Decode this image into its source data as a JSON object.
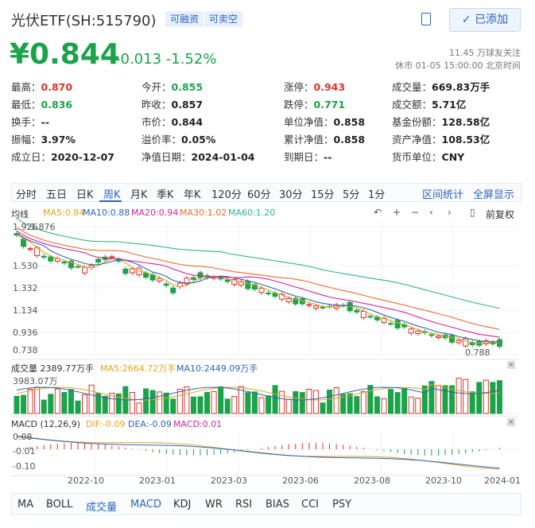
{
  "header": {
    "title": "光伏ETF(SH:515790)",
    "badges": [
      "可融资",
      "可卖空"
    ],
    "add_button": "已添加",
    "price": "¥0.844",
    "change": "-0.013 -1.52%",
    "followers": "11.45 万球友关注",
    "market_status": "休市 01-05 15:00:00 北京时间"
  },
  "stats": [
    [
      "最高：",
      "0.870",
      "今开：",
      "0.855",
      "涨停：",
      "0.943",
      "成交量：",
      "669.83万手"
    ],
    [
      "最低：",
      "0.836",
      "昨收：",
      "0.857",
      "跌停：",
      "0.771",
      "成交额：",
      "5.71亿"
    ],
    [
      "换手：",
      "--",
      "市价：",
      "0.844",
      "单位净值：",
      "0.858",
      "基金份额：",
      "128.58亿"
    ],
    [
      "振幅：",
      "3.97%",
      "溢价率：",
      "0.05%",
      "累计净值：",
      "0.858",
      "资产净值：",
      "108.53亿"
    ],
    [
      "成立日：",
      "2020-12-07",
      "净值日期：",
      "2024-01-04",
      "到期日：",
      "--",
      "货币单位：",
      "CNY"
    ]
  ],
  "tabs": [
    "分时",
    "五日",
    "日K",
    "周K",
    "月K",
    "季K",
    "年K",
    "120分",
    "60分",
    "30分",
    "15分",
    "5分",
    "1分"
  ],
  "active_tab": "周K",
  "tab_links": [
    "区间统计",
    "全屏显示"
  ],
  "ma_legend": {
    "label": "均线",
    "items": [
      {
        "text": "MA5:0.84",
        "color": "#e8a317"
      },
      {
        "text": "MA10:0.88",
        "color": "#2a64c5"
      },
      {
        "text": "MA20:0.94",
        "color": "#d6249f"
      },
      {
        "text": "MA30:1.02",
        "color": "#f06a2c"
      },
      {
        "text": "MA60:1.20",
        "color": "#2fb58c"
      }
    ],
    "fq": "前复权"
  },
  "price_axis": [
    "1.876",
    "1.530",
    "1.332",
    "1.134",
    "0.936",
    "0.738"
  ],
  "price_axis_top_partial": "1.926",
  "low_marker": "0.788",
  "vol_legend": {
    "label": "成交量 2389.77万手",
    "ma5": "MA5:2664.72万手",
    "ma10": "MA10:2449.09万手",
    "axis_top": "3983.07万"
  },
  "macd_legend": {
    "label": "MACD (12,26,9)",
    "dif": "DIF:-0.09",
    "dea": "DEA:-0.09",
    "macd": "MACD:0.01",
    "axis": [
      "0.08",
      "-0.01",
      "-0.10"
    ]
  },
  "x_axis": [
    "2022-10",
    "2023-01",
    "2023-03",
    "2023-06",
    "2023-08",
    "2023-10",
    "2024-01"
  ],
  "indicators": [
    "MA",
    "BOLL",
    "成交量",
    "MACD",
    "KDJ",
    "WR",
    "RSI",
    "BIAS",
    "CCI",
    "PSY"
  ],
  "active_indicator": [
    "成交量",
    "MACD"
  ],
  "chart_data": {
    "type": "candlestick",
    "ohlc_close_estimates": [
      1.8,
      1.7,
      1.66,
      1.6,
      1.58,
      1.56,
      1.52,
      1.5,
      1.55,
      1.6,
      1.62,
      1.48,
      1.5,
      1.45,
      1.42,
      1.38,
      1.3,
      1.4,
      1.42,
      1.44,
      1.43,
      1.4,
      1.4,
      1.36,
      1.35,
      1.3,
      1.28,
      1.25,
      1.22,
      1.2,
      1.18,
      1.15,
      1.18,
      1.17,
      1.16,
      1.1,
      1.08,
      1.05,
      1.02,
      1.0,
      0.96,
      0.94,
      0.92,
      0.9,
      0.88,
      0.86,
      0.84,
      0.84,
      0.85,
      0.84
    ],
    "y_range": [
      0.738,
      1.926
    ]
  }
}
